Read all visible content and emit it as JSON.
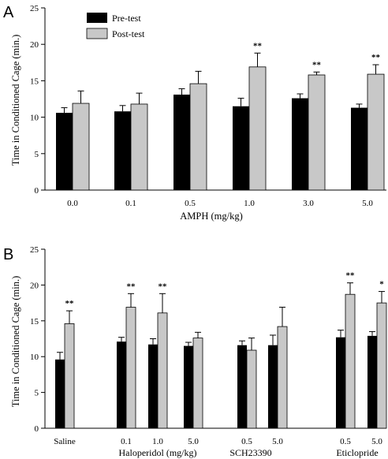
{
  "chart_data": [
    {
      "type": "bar",
      "panel": "A",
      "xlabel": "AMPH (mg/kg)",
      "ylabel": "Time in Conditioned Cage (min.)",
      "ylim": [
        0,
        25
      ],
      "yticks": [
        "0",
        "5",
        "10",
        "15",
        "20",
        "25"
      ],
      "categories": [
        "0.0",
        "0.1",
        "0.5",
        "1.0",
        "3.0",
        "5.0"
      ],
      "legend": {
        "position": "top-left",
        "entries": [
          "Pre-test",
          "Post-test"
        ]
      },
      "series": [
        {
          "name": "Pre-test",
          "color": "#000000",
          "values": [
            10.6,
            10.8,
            13.1,
            11.5,
            12.6,
            11.3
          ],
          "errors": [
            0.7,
            0.8,
            0.8,
            1.1,
            0.6,
            0.5
          ]
        },
        {
          "name": "Post-test",
          "color": "#c8c8c8",
          "values": [
            11.9,
            11.8,
            14.6,
            16.9,
            15.8,
            15.9
          ],
          "errors": [
            1.7,
            1.5,
            1.7,
            1.9,
            0.4,
            1.3
          ]
        }
      ],
      "annotations": [
        "",
        "",
        "",
        "**",
        "**",
        "**"
      ]
    },
    {
      "type": "bar",
      "panel": "B",
      "ylabel": "Time in Conditioned Cage (min.)",
      "ylim": [
        0,
        25
      ],
      "yticks": [
        "0",
        "5",
        "10",
        "15",
        "20",
        "25"
      ],
      "categories": [
        "Saline",
        "0.1",
        "1.0",
        "5.0",
        "0.5",
        "5.0",
        "0.5",
        "5.0"
      ],
      "group_labels": [
        "Haloperidol (mg/kg)",
        "SCH23390",
        "Eticlopride"
      ],
      "series": [
        {
          "name": "Pre-test",
          "color": "#000000",
          "values": [
            9.6,
            12.1,
            11.7,
            11.5,
            11.6,
            11.6,
            12.7,
            12.9
          ],
          "errors": [
            1.0,
            0.6,
            0.8,
            0.5,
            0.6,
            1.4,
            1.0,
            0.6
          ]
        },
        {
          "name": "Post-test",
          "color": "#c8c8c8",
          "values": [
            14.6,
            16.9,
            16.1,
            12.6,
            10.9,
            14.2,
            18.7,
            17.5
          ],
          "errors": [
            1.8,
            1.9,
            2.7,
            0.8,
            1.7,
            2.7,
            1.6,
            1.6
          ]
        }
      ],
      "annotations": [
        "**",
        "**",
        "**",
        "",
        "",
        "",
        "**",
        "*"
      ]
    }
  ]
}
